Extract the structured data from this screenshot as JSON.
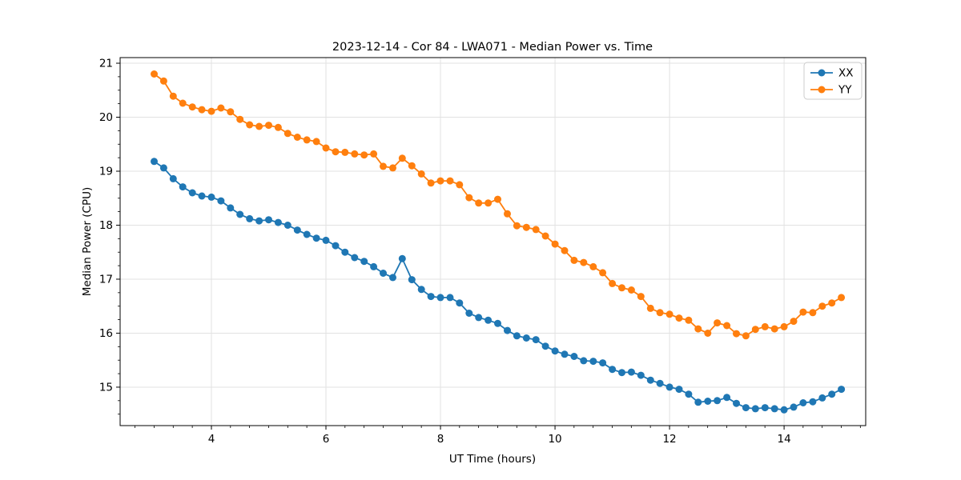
{
  "figure": {
    "background": "#ffffff",
    "text_color": "#000000",
    "grid_color": "#e2e2e2",
    "spine_color": "#000000"
  },
  "chart_data": {
    "type": "line",
    "title": "2023-12-14 - Cor 84 - LWA071 - Median Power vs. Time",
    "xlabel": "UT Time (hours)",
    "ylabel": "Median Power (CPU)",
    "xlim": [
      2.406,
      15.425
    ],
    "ylim": [
      14.288,
      21.104
    ],
    "x_ticks": [
      4,
      6,
      8,
      10,
      12,
      14
    ],
    "y_ticks": [
      15,
      16,
      17,
      18,
      19,
      20,
      21
    ],
    "x_minor_step": 0.3333,
    "y_minor_step": 0.25,
    "grid": true,
    "legend_position": "upper right",
    "marker": "o",
    "x": [
      3.0,
      3.167,
      3.333,
      3.5,
      3.667,
      3.833,
      4.0,
      4.167,
      4.333,
      4.5,
      4.667,
      4.833,
      5.0,
      5.167,
      5.333,
      5.5,
      5.667,
      5.833,
      6.0,
      6.167,
      6.333,
      6.5,
      6.667,
      6.833,
      7.0,
      7.167,
      7.333,
      7.5,
      7.667,
      7.833,
      8.0,
      8.167,
      8.333,
      8.5,
      8.667,
      8.833,
      9.0,
      9.167,
      9.333,
      9.5,
      9.667,
      9.833,
      10.0,
      10.167,
      10.333,
      10.5,
      10.667,
      10.833,
      11.0,
      11.167,
      11.333,
      11.5,
      11.667,
      11.833,
      12.0,
      12.167,
      12.333,
      12.5,
      12.667,
      12.833,
      13.0,
      13.167,
      13.333,
      13.5,
      13.667,
      13.833,
      14.0,
      14.167,
      14.333,
      14.5,
      14.667,
      14.833,
      15.0
    ],
    "series": [
      {
        "name": "XX",
        "color": "#1f77b4",
        "values": [
          19.18,
          19.06,
          18.86,
          18.71,
          18.6,
          18.54,
          18.52,
          18.45,
          18.32,
          18.2,
          18.12,
          18.08,
          18.1,
          18.05,
          18.0,
          17.91,
          17.83,
          17.76,
          17.72,
          17.62,
          17.5,
          17.4,
          17.33,
          17.23,
          17.11,
          17.03,
          17.38,
          16.99,
          16.81,
          16.68,
          16.66,
          16.66,
          16.56,
          16.37,
          16.29,
          16.24,
          16.18,
          16.05,
          15.95,
          15.91,
          15.88,
          15.76,
          15.67,
          15.61,
          15.57,
          15.49,
          15.48,
          15.45,
          15.33,
          15.27,
          15.28,
          15.22,
          15.13,
          15.07,
          15.0,
          14.96,
          14.87,
          14.72,
          14.74,
          14.75,
          14.81,
          14.7,
          14.62,
          14.6,
          14.62,
          14.6,
          14.58,
          14.63,
          14.71,
          14.73,
          14.8,
          14.87,
          14.96
        ]
      },
      {
        "name": "YY",
        "color": "#ff7f0e",
        "values": [
          20.8,
          20.67,
          20.39,
          20.26,
          20.19,
          20.14,
          20.11,
          20.17,
          20.1,
          19.96,
          19.86,
          19.83,
          19.85,
          19.81,
          19.7,
          19.63,
          19.58,
          19.55,
          19.43,
          19.36,
          19.35,
          19.32,
          19.3,
          19.32,
          19.09,
          19.06,
          19.24,
          19.1,
          18.95,
          18.78,
          18.82,
          18.82,
          18.75,
          18.51,
          18.41,
          18.41,
          18.48,
          18.21,
          17.99,
          17.96,
          17.92,
          17.8,
          17.65,
          17.53,
          17.35,
          17.31,
          17.23,
          17.12,
          16.92,
          16.84,
          16.8,
          16.68,
          16.46,
          16.38,
          16.35,
          16.28,
          16.24,
          16.08,
          16.0,
          16.19,
          16.14,
          15.99,
          15.95,
          16.07,
          16.12,
          16.08,
          16.12,
          16.22,
          16.39,
          16.38,
          16.5,
          16.56,
          16.66
        ]
      }
    ]
  }
}
